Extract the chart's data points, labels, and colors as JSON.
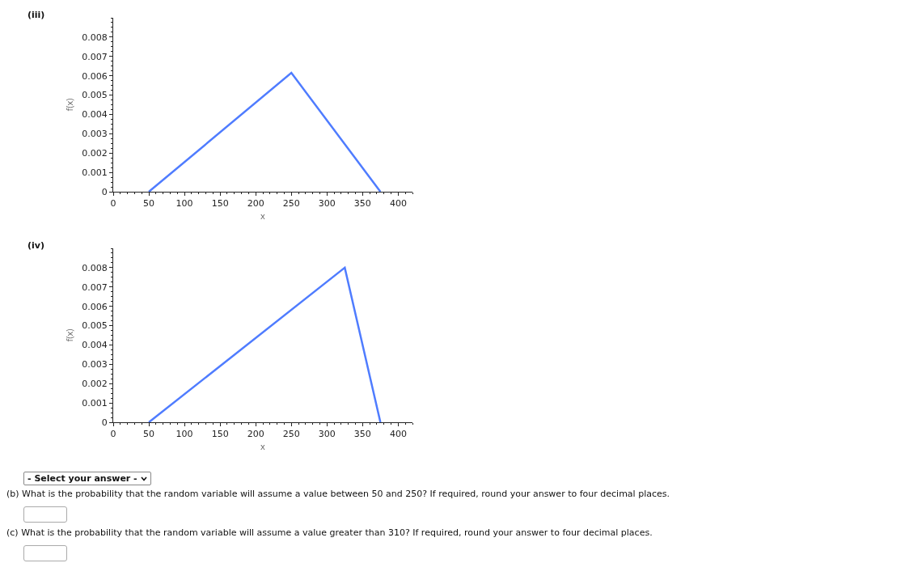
{
  "chart_data": [
    {
      "type": "line",
      "title": "(iii)",
      "xlabel": "x",
      "ylabel": "f(x)",
      "color": "#4f7cff",
      "x": [
        50,
        250,
        375
      ],
      "values": [
        0,
        0.00615,
        0
      ],
      "xlim": [
        0,
        420
      ],
      "xticks": [
        0,
        50,
        100,
        150,
        200,
        250,
        300,
        350,
        400
      ],
      "ylim": [
        0,
        0.009
      ],
      "yticks": [
        0,
        0.001,
        0.002,
        0.003,
        0.004,
        0.005,
        0.006,
        0.007,
        0.008
      ],
      "grid": false,
      "legend": false,
      "marker": "none",
      "line_style": "solid"
    },
    {
      "type": "line",
      "title": "(iv)",
      "xlabel": "x",
      "ylabel": "f(x)",
      "color": "#4f7cff",
      "x": [
        50,
        325,
        375
      ],
      "values": [
        0,
        0.008,
        0
      ],
      "xlim": [
        0,
        420
      ],
      "xticks": [
        0,
        50,
        100,
        150,
        200,
        250,
        300,
        350,
        400
      ],
      "ylim": [
        0,
        0.009
      ],
      "yticks": [
        0,
        0.001,
        0.002,
        0.003,
        0.004,
        0.005,
        0.006,
        0.007,
        0.008
      ],
      "grid": false,
      "legend": false,
      "marker": "none",
      "line_style": "solid",
      "annotations": [
        "- Select your answer -",
        "(b) What is the probability that the random variable will assume a value between 50 and 250? If required, round your answer to four decimal places.",
        "(c) What is the probability that the random variable will assume a value greater than 310? If required, round your answer to four decimal places."
      ]
    }
  ]
}
